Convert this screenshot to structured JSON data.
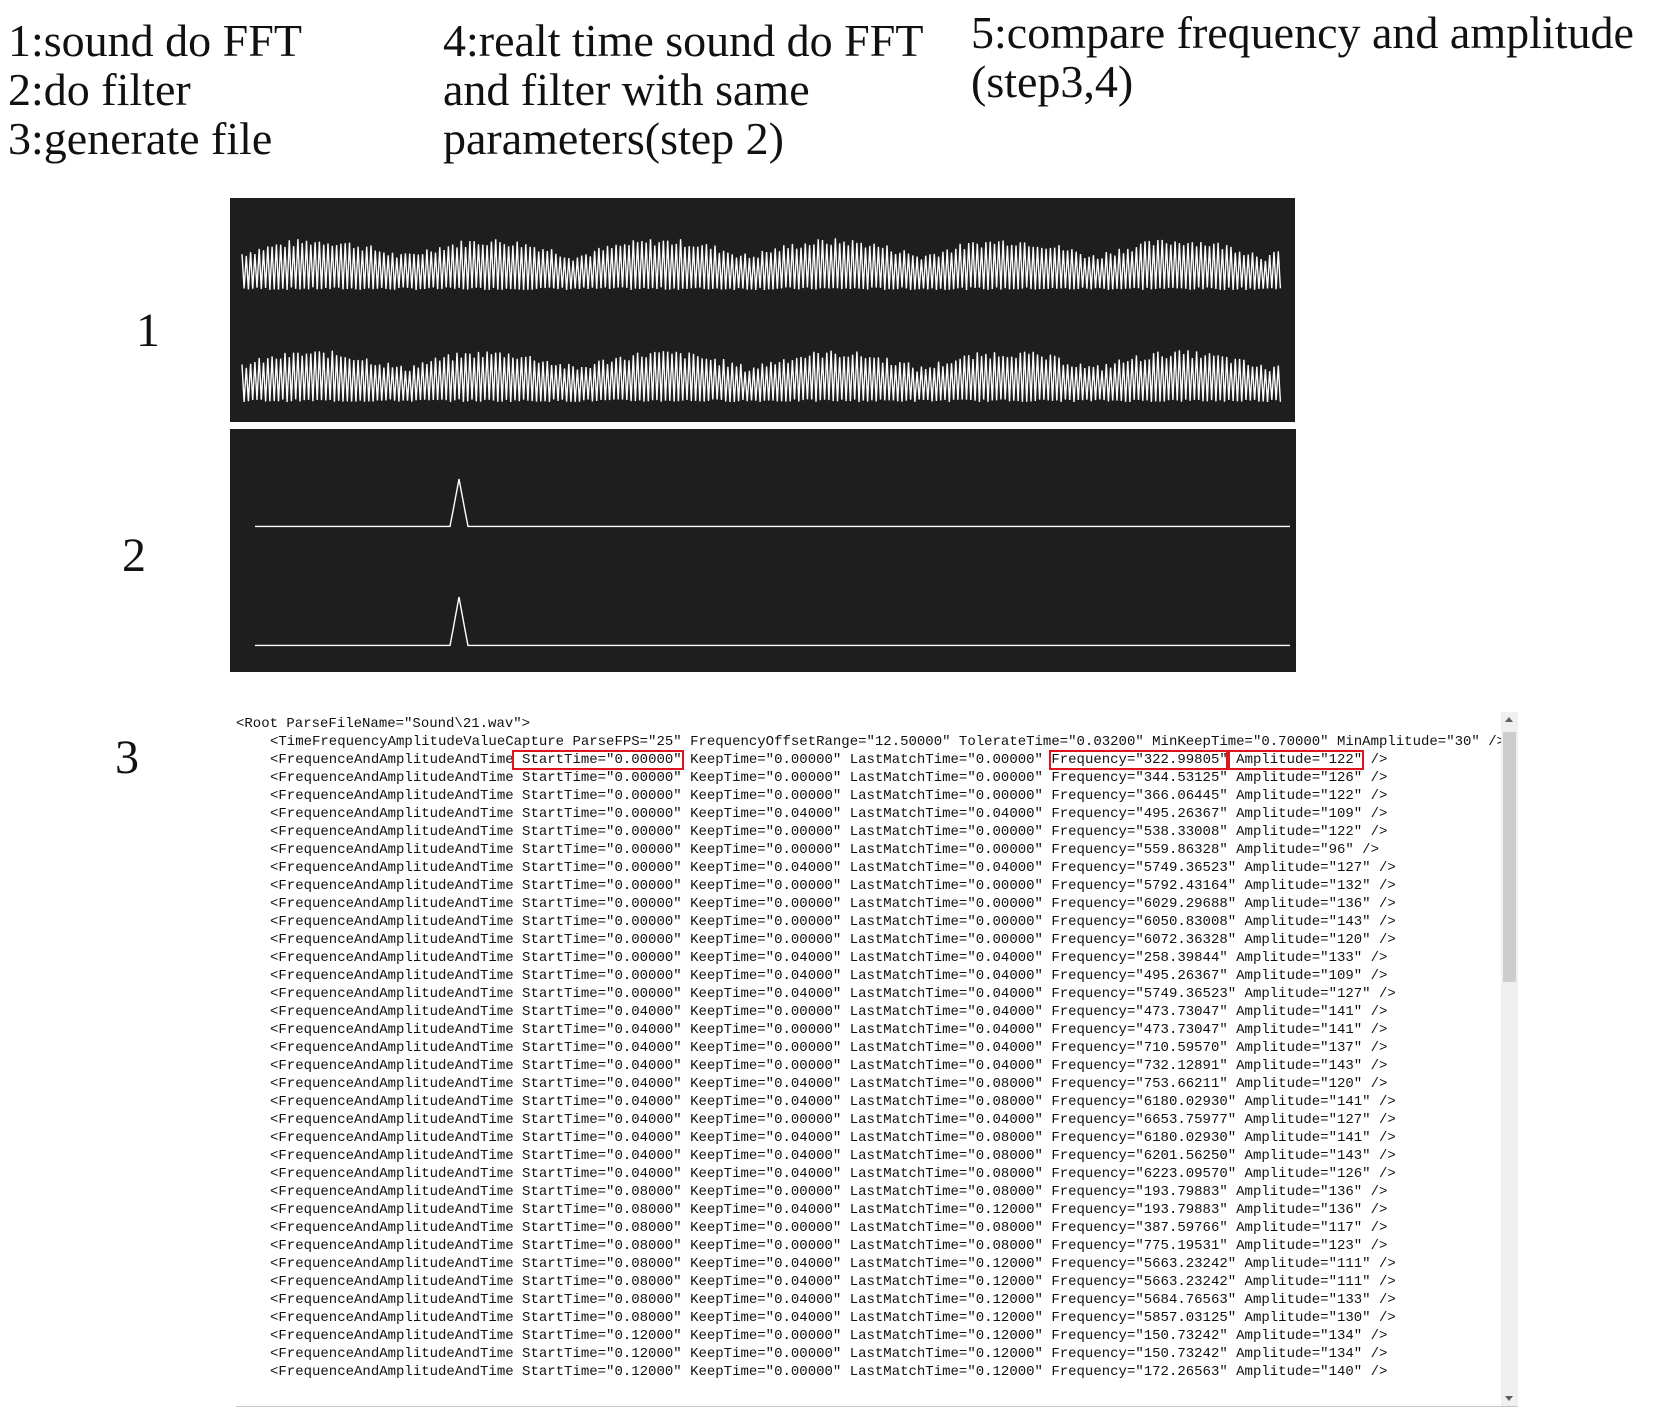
{
  "steps": [
    {
      "lines": [
        "1:sound do FFT",
        "2:do filter",
        "3:generate file"
      ]
    },
    {
      "lines": [
        "4:realt time sound do FFT",
        "and filter with same",
        "parameters(step 2)"
      ]
    },
    {
      "lines": [
        "5:compare frequency and amplitude",
        "(step3,4)"
      ]
    }
  ],
  "panel_labels": [
    "1",
    "2",
    "3"
  ],
  "xml": {
    "lines": [
      "<Root ParseFileName=\"Sound\\21.wav\">",
      "<TimeFrequencyAmplitudeValueCapture ParseFPS=\"25\" FrequencyOffsetRange=\"12.50000\" TolerateTime=\"0.03200\" MinKeepTime=\"0.70000\" MinAmplitude=\"30\" />",
      {
        "segments": [
          {
            "text": "<FrequenceAndAmplitudeAndTime",
            "boxed": false
          },
          {
            "text": " StartTime=\"0.00000\"",
            "boxed": true
          },
          {
            "text": " KeepTime=\"0.00000\" LastMatchTime=\"0.00000\" ",
            "boxed": false
          },
          {
            "text": "Frequency=\"322.99805\"",
            "boxed": true
          },
          {
            "text": " Amplitude=\"122\"",
            "boxed": true
          },
          {
            "text": " />",
            "boxed": false
          }
        ]
      },
      "<FrequenceAndAmplitudeAndTime StartTime=\"0.00000\" KeepTime=\"0.00000\" LastMatchTime=\"0.00000\" Frequency=\"344.53125\" Amplitude=\"126\" />",
      "<FrequenceAndAmplitudeAndTime StartTime=\"0.00000\" KeepTime=\"0.00000\" LastMatchTime=\"0.00000\" Frequency=\"366.06445\" Amplitude=\"122\" />",
      "<FrequenceAndAmplitudeAndTime StartTime=\"0.00000\" KeepTime=\"0.04000\" LastMatchTime=\"0.04000\" Frequency=\"495.26367\" Amplitude=\"109\" />",
      "<FrequenceAndAmplitudeAndTime StartTime=\"0.00000\" KeepTime=\"0.00000\" LastMatchTime=\"0.00000\" Frequency=\"538.33008\" Amplitude=\"122\" />",
      "<FrequenceAndAmplitudeAndTime StartTime=\"0.00000\" KeepTime=\"0.00000\" LastMatchTime=\"0.00000\" Frequency=\"559.86328\" Amplitude=\"96\" />",
      "<FrequenceAndAmplitudeAndTime StartTime=\"0.00000\" KeepTime=\"0.04000\" LastMatchTime=\"0.04000\" Frequency=\"5749.36523\" Amplitude=\"127\" />",
      "<FrequenceAndAmplitudeAndTime StartTime=\"0.00000\" KeepTime=\"0.00000\" LastMatchTime=\"0.00000\" Frequency=\"5792.43164\" Amplitude=\"132\" />",
      "<FrequenceAndAmplitudeAndTime StartTime=\"0.00000\" KeepTime=\"0.00000\" LastMatchTime=\"0.00000\" Frequency=\"6029.29688\" Amplitude=\"136\" />",
      "<FrequenceAndAmplitudeAndTime StartTime=\"0.00000\" KeepTime=\"0.00000\" LastMatchTime=\"0.00000\" Frequency=\"6050.83008\" Amplitude=\"143\" />",
      "<FrequenceAndAmplitudeAndTime StartTime=\"0.00000\" KeepTime=\"0.00000\" LastMatchTime=\"0.00000\" Frequency=\"6072.36328\" Amplitude=\"120\" />",
      "<FrequenceAndAmplitudeAndTime StartTime=\"0.00000\" KeepTime=\"0.04000\" LastMatchTime=\"0.04000\" Frequency=\"258.39844\" Amplitude=\"133\" />",
      "<FrequenceAndAmplitudeAndTime StartTime=\"0.00000\" KeepTime=\"0.04000\" LastMatchTime=\"0.04000\" Frequency=\"495.26367\" Amplitude=\"109\" />",
      "<FrequenceAndAmplitudeAndTime StartTime=\"0.00000\" KeepTime=\"0.04000\" LastMatchTime=\"0.04000\" Frequency=\"5749.36523\" Amplitude=\"127\" />",
      "<FrequenceAndAmplitudeAndTime StartTime=\"0.04000\" KeepTime=\"0.00000\" LastMatchTime=\"0.04000\" Frequency=\"473.73047\" Amplitude=\"141\" />",
      "<FrequenceAndAmplitudeAndTime StartTime=\"0.04000\" KeepTime=\"0.00000\" LastMatchTime=\"0.04000\" Frequency=\"473.73047\" Amplitude=\"141\" />",
      "<FrequenceAndAmplitudeAndTime StartTime=\"0.04000\" KeepTime=\"0.00000\" LastMatchTime=\"0.04000\" Frequency=\"710.59570\" Amplitude=\"137\" />",
      "<FrequenceAndAmplitudeAndTime StartTime=\"0.04000\" KeepTime=\"0.00000\" LastMatchTime=\"0.04000\" Frequency=\"732.12891\" Amplitude=\"143\" />",
      "<FrequenceAndAmplitudeAndTime StartTime=\"0.04000\" KeepTime=\"0.04000\" LastMatchTime=\"0.08000\" Frequency=\"753.66211\" Amplitude=\"120\" />",
      "<FrequenceAndAmplitudeAndTime StartTime=\"0.04000\" KeepTime=\"0.04000\" LastMatchTime=\"0.08000\" Frequency=\"6180.02930\" Amplitude=\"141\" />",
      "<FrequenceAndAmplitudeAndTime StartTime=\"0.04000\" KeepTime=\"0.00000\" LastMatchTime=\"0.04000\" Frequency=\"6653.75977\" Amplitude=\"127\" />",
      "<FrequenceAndAmplitudeAndTime StartTime=\"0.04000\" KeepTime=\"0.04000\" LastMatchTime=\"0.08000\" Frequency=\"6180.02930\" Amplitude=\"141\" />",
      "<FrequenceAndAmplitudeAndTime StartTime=\"0.04000\" KeepTime=\"0.04000\" LastMatchTime=\"0.08000\" Frequency=\"6201.56250\" Amplitude=\"143\" />",
      "<FrequenceAndAmplitudeAndTime StartTime=\"0.04000\" KeepTime=\"0.04000\" LastMatchTime=\"0.08000\" Frequency=\"6223.09570\" Amplitude=\"126\" />",
      "<FrequenceAndAmplitudeAndTime StartTime=\"0.08000\" KeepTime=\"0.00000\" LastMatchTime=\"0.08000\" Frequency=\"193.79883\" Amplitude=\"136\" />",
      "<FrequenceAndAmplitudeAndTime StartTime=\"0.08000\" KeepTime=\"0.04000\" LastMatchTime=\"0.12000\" Frequency=\"193.79883\" Amplitude=\"136\" />",
      "<FrequenceAndAmplitudeAndTime StartTime=\"0.08000\" KeepTime=\"0.00000\" LastMatchTime=\"0.08000\" Frequency=\"387.59766\" Amplitude=\"117\" />",
      "<FrequenceAndAmplitudeAndTime StartTime=\"0.08000\" KeepTime=\"0.00000\" LastMatchTime=\"0.08000\" Frequency=\"775.19531\" Amplitude=\"123\" />",
      "<FrequenceAndAmplitudeAndTime StartTime=\"0.08000\" KeepTime=\"0.04000\" LastMatchTime=\"0.12000\" Frequency=\"5663.23242\" Amplitude=\"111\" />",
      "<FrequenceAndAmplitudeAndTime StartTime=\"0.08000\" KeepTime=\"0.04000\" LastMatchTime=\"0.12000\" Frequency=\"5663.23242\" Amplitude=\"111\" />",
      "<FrequenceAndAmplitudeAndTime StartTime=\"0.08000\" KeepTime=\"0.04000\" LastMatchTime=\"0.12000\" Frequency=\"5684.76563\" Amplitude=\"133\" />",
      "<FrequenceAndAmplitudeAndTime StartTime=\"0.08000\" KeepTime=\"0.04000\" LastMatchTime=\"0.12000\" Frequency=\"5857.03125\" Amplitude=\"130\" />",
      "<FrequenceAndAmplitudeAndTime StartTime=\"0.12000\" KeepTime=\"0.00000\" LastMatchTime=\"0.12000\" Frequency=\"150.73242\" Amplitude=\"134\" />",
      "<FrequenceAndAmplitudeAndTime StartTime=\"0.12000\" KeepTime=\"0.00000\" LastMatchTime=\"0.12000\" Frequency=\"150.73242\" Amplitude=\"134\" />",
      "<FrequenceAndAmplitudeAndTime StartTime=\"0.12000\" KeepTime=\"0.00000\" LastMatchTime=\"0.12000\" Frequency=\"172.26563\" Amplitude=\"140\" />"
    ]
  }
}
